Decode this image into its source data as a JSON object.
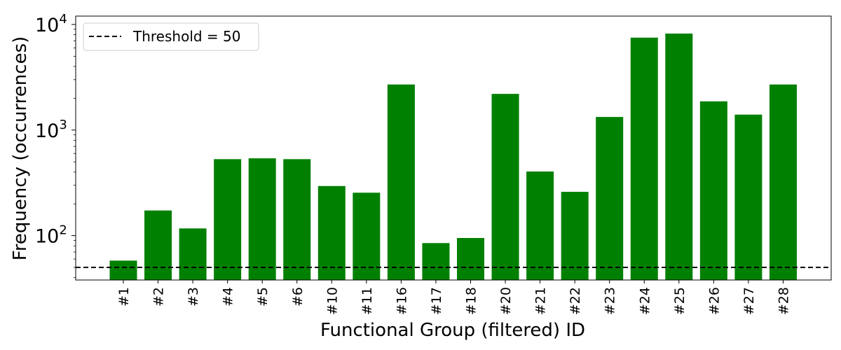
{
  "chart_data": {
    "type": "bar",
    "title": "",
    "xlabel": "Functional Group (filtered) ID",
    "ylabel": "Frequency (occurrences)",
    "yscale": "log",
    "ylim": [
      38,
      12000
    ],
    "yticks": [
      100,
      1000,
      10000
    ],
    "ytick_labels": [
      {
        "base": "10",
        "exp": "2"
      },
      {
        "base": "10",
        "exp": "3"
      },
      {
        "base": "10",
        "exp": "4"
      }
    ],
    "categories": [
      "#1",
      "#2",
      "#3",
      "#4",
      "#5",
      "#6",
      "#10",
      "#11",
      "#16",
      "#17",
      "#18",
      "#20",
      "#21",
      "#22",
      "#23",
      "#24",
      "#25",
      "#26",
      "#27",
      "#28"
    ],
    "values": [
      58,
      173,
      117,
      530,
      540,
      530,
      295,
      255,
      2700,
      85,
      95,
      2200,
      405,
      260,
      1330,
      7500,
      8200,
      1870,
      1400,
      2700
    ],
    "bar_color": "#008000",
    "threshold": {
      "value": 50,
      "label": "Threshold = 50",
      "style": "dashed",
      "color": "#000000"
    },
    "legend": {
      "placement": "top-left"
    },
    "grid": false
  }
}
